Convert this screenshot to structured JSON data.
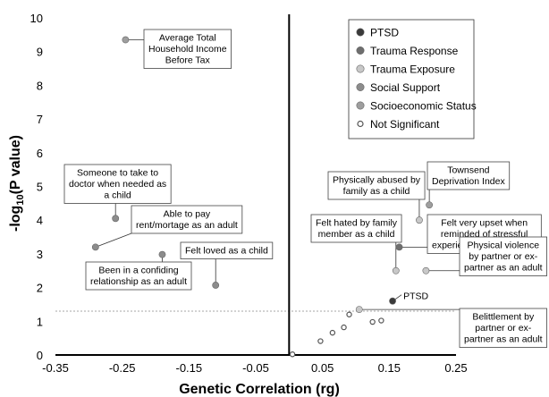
{
  "chart_data": {
    "type": "scatter",
    "xlabel": "Genetic Correlation (rg)",
    "ylabel": "-log10(P value)",
    "ylabel_main": "-log",
    "ylabel_sub": "10",
    "ylabel_rest": "(P value)",
    "xlim": [
      -0.35,
      0.25
    ],
    "ylim": [
      0,
      10
    ],
    "x_ticks": [
      "-0.35",
      "-0.25",
      "-0.15",
      "-0.05",
      "0.05",
      "0.15",
      "0.25"
    ],
    "y_ticks": [
      "0",
      "1",
      "2",
      "3",
      "4",
      "5",
      "6",
      "7",
      "8",
      "9",
      "10"
    ],
    "significance_threshold": 1.3,
    "colors": {
      "PTSD": "#3a3a3a",
      "Trauma Response": "#6e6e6e",
      "Trauma Exposure": "#c8c8c8",
      "Social Support": "#8c8c8c",
      "Socioeconomic Status": "#9e9e9e",
      "Not Significant": "#ffffff"
    },
    "legend": {
      "position": "top-right",
      "entries": [
        "PTSD",
        "Trauma Response",
        "Trauma Exposure",
        "Social Support",
        "Socioeconomic Status",
        "Not Significant"
      ]
    },
    "points": [
      {
        "x": -0.245,
        "y": 9.35,
        "group": "Socioeconomic Status"
      },
      {
        "x": -0.26,
        "y": 4.05,
        "group": "Social Support"
      },
      {
        "x": -0.29,
        "y": 3.2,
        "group": "Social Support"
      },
      {
        "x": -0.19,
        "y": 2.98,
        "group": "Social Support"
      },
      {
        "x": -0.11,
        "y": 2.07,
        "group": "Social Support"
      },
      {
        "x": 0.21,
        "y": 4.45,
        "group": "Socioeconomic Status"
      },
      {
        "x": 0.195,
        "y": 4.0,
        "group": "Trauma Exposure"
      },
      {
        "x": 0.165,
        "y": 3.2,
        "group": "Trauma Response"
      },
      {
        "x": 0.16,
        "y": 2.5,
        "group": "Trauma Exposure"
      },
      {
        "x": 0.205,
        "y": 2.5,
        "group": "Trauma Exposure"
      },
      {
        "x": 0.155,
        "y": 1.6,
        "group": "PTSD"
      },
      {
        "x": 0.105,
        "y": 1.35,
        "group": "Trauma Exposure"
      },
      {
        "x": 0.09,
        "y": 1.2,
        "group": "Not Significant"
      },
      {
        "x": 0.125,
        "y": 0.98,
        "group": "Not Significant"
      },
      {
        "x": 0.138,
        "y": 1.02,
        "group": "Not Significant"
      },
      {
        "x": 0.082,
        "y": 0.82,
        "group": "Not Significant"
      },
      {
        "x": 0.065,
        "y": 0.66,
        "group": "Not Significant"
      },
      {
        "x": 0.047,
        "y": 0.41,
        "group": "Not Significant"
      },
      {
        "x": 0.005,
        "y": 0.02,
        "group": "Not Significant"
      }
    ],
    "annotations": [
      {
        "point": 0,
        "lines": [
          "Average Total",
          "Household Income",
          "Before Tax"
        ]
      },
      {
        "point": 1,
        "lines": [
          "Someone to take to",
          "doctor when needed as",
          "a child"
        ]
      },
      {
        "point": 2,
        "lines": [
          "Able to pay",
          "rent/mortage as an adult"
        ]
      },
      {
        "point": 3,
        "lines": [
          "Been in a confiding",
          "relationship as an adult"
        ]
      },
      {
        "point": 4,
        "lines": [
          "Felt loved as a child"
        ]
      },
      {
        "point": 5,
        "lines": [
          "Townsend",
          "Deprivation Index"
        ]
      },
      {
        "point": 6,
        "lines": [
          "Physically abused by",
          "family as a child"
        ]
      },
      {
        "point": 7,
        "lines": [
          "Felt very upset when",
          "reminded of stressful",
          "experience in past month"
        ]
      },
      {
        "point": 8,
        "lines": [
          "Felt hated by family",
          "member as a child"
        ]
      },
      {
        "point": 9,
        "lines": [
          "Physical violence",
          "by partner or ex-",
          "partner as an adult"
        ]
      },
      {
        "point": 10,
        "lines": [
          "PTSD"
        ],
        "plain": true
      },
      {
        "point": 11,
        "lines": [
          "Belittlement by",
          "partner or ex-",
          "partner as an adult"
        ]
      }
    ]
  }
}
